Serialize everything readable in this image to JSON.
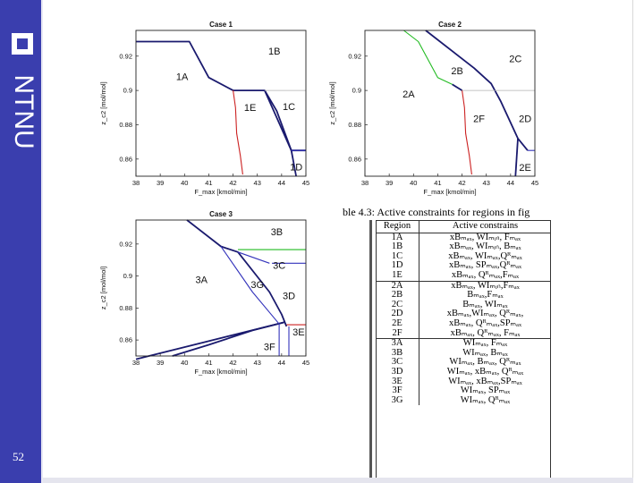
{
  "logo": {
    "text": "NTNU"
  },
  "page_number": "52",
  "colors": {
    "sidebar": "#3a3eae",
    "boundary": "#1a1a6e",
    "red": "#cc2222",
    "green": "#22bb22",
    "blue": "#3333bb",
    "gray": "#b0b0b0"
  },
  "chart_data": [
    {
      "type": "line",
      "title": "Case 1",
      "xlabel": "F_max [kmol/min]",
      "ylabel": "z_c2 [mol/mol]",
      "xlim": [
        38,
        45
      ],
      "ylim": [
        0.85,
        0.935
      ],
      "x_ticks": [
        "38",
        "39",
        "40",
        "41",
        "42",
        "43",
        "44",
        "45"
      ],
      "y_ticks": [
        "0.86",
        "0.88",
        "0.9",
        "0.92"
      ],
      "region_labels": [
        {
          "text": "1A",
          "x": 39.9,
          "y": 0.906
        },
        {
          "text": "1B",
          "x": 43.7,
          "y": 0.921
        },
        {
          "text": "1C",
          "x": 44.3,
          "y": 0.8885
        },
        {
          "text": "1E",
          "x": 42.7,
          "y": 0.888
        },
        {
          "text": "1D",
          "x": 44.6,
          "y": 0.8535
        }
      ],
      "series": [
        {
          "color": "boundary",
          "points": [
            [
              38.0,
              0.9285
            ],
            [
              40.2,
              0.9285
            ],
            [
              41.0,
              0.9075
            ],
            [
              42.0,
              0.9
            ],
            [
              43.3,
              0.9
            ],
            [
              43.8,
              0.888
            ],
            [
              44.4,
              0.865
            ],
            [
              45.0,
              0.865
            ]
          ]
        },
        {
          "color": "boundary",
          "points": [
            [
              43.3,
              0.9
            ],
            [
              44.4,
              0.865
            ]
          ]
        },
        {
          "color": "boundary",
          "points": [
            [
              44.4,
              0.865
            ],
            [
              44.6,
              0.85
            ]
          ]
        },
        {
          "color": "red",
          "points": [
            [
              42.0,
              0.9
            ],
            [
              42.1,
              0.89
            ],
            [
              42.15,
              0.875
            ],
            [
              42.3,
              0.862
            ],
            [
              42.4,
              0.851
            ]
          ]
        },
        {
          "color": "gray",
          "points": [
            [
              43.3,
              0.9
            ],
            [
              45.0,
              0.9
            ]
          ]
        },
        {
          "color": "blue",
          "points": [
            [
              44.4,
              0.865
            ],
            [
              45.0,
              0.865
            ]
          ]
        }
      ]
    },
    {
      "type": "line",
      "title": "Case 2",
      "xlabel": "F_max [kmol/min]",
      "ylabel": "z_c2 [mol/mol]",
      "xlim": [
        38,
        45
      ],
      "ylim": [
        0.85,
        0.935
      ],
      "x_ticks": [
        "38",
        "39",
        "40",
        "41",
        "42",
        "43",
        "44",
        "45"
      ],
      "y_ticks": [
        "0.86",
        "0.88",
        "0.9",
        "0.92"
      ],
      "region_labels": [
        {
          "text": "2C",
          "x": 44.2,
          "y": 0.9165
        },
        {
          "text": "2B",
          "x": 41.8,
          "y": 0.9095
        },
        {
          "text": "2A",
          "x": 39.8,
          "y": 0.896
        },
        {
          "text": "2F",
          "x": 42.7,
          "y": 0.8815
        },
        {
          "text": "2D",
          "x": 44.6,
          "y": 0.8815
        },
        {
          "text": "2E",
          "x": 44.6,
          "y": 0.853
        }
      ],
      "series": [
        {
          "color": "green",
          "points": [
            [
              39.6,
              0.935
            ],
            [
              40.2,
              0.9285
            ],
            [
              41.0,
              0.9075
            ],
            [
              41.6,
              0.9035
            ],
            [
              42.0,
              0.9
            ]
          ]
        },
        {
          "color": "boundary",
          "points": [
            [
              40.5,
              0.935
            ],
            [
              42.5,
              0.913
            ],
            [
              43.2,
              0.904
            ],
            [
              43.6,
              0.8935
            ],
            [
              44.3,
              0.872
            ],
            [
              44.7,
              0.865
            ]
          ]
        },
        {
          "color": "boundary",
          "points": [
            [
              41.6,
              0.9035
            ],
            [
              42.0,
              0.9
            ]
          ]
        },
        {
          "color": "boundary",
          "points": [
            [
              44.3,
              0.872
            ],
            [
              44.2,
              0.85
            ]
          ]
        },
        {
          "color": "red",
          "points": [
            [
              42.0,
              0.9
            ],
            [
              42.1,
              0.89
            ],
            [
              42.15,
              0.875
            ],
            [
              42.3,
              0.862
            ],
            [
              42.4,
              0.851
            ]
          ]
        },
        {
          "color": "gray",
          "points": [
            [
              42.0,
              0.9
            ],
            [
              45.0,
              0.9
            ]
          ]
        },
        {
          "color": "blue",
          "points": [
            [
              44.7,
              0.865
            ],
            [
              45.0,
              0.865
            ]
          ]
        }
      ]
    },
    {
      "type": "line",
      "title": "Case 3",
      "xlabel": "F_max [kmol/min]",
      "ylabel": "z_c2 [mol/mol]",
      "xlim": [
        38,
        45
      ],
      "ylim": [
        0.85,
        0.935
      ],
      "x_ticks": [
        "38",
        "39",
        "40",
        "41",
        "42",
        "43",
        "44",
        "45"
      ],
      "y_ticks": [
        "0.86",
        "0.88",
        "0.9",
        "0.92"
      ],
      "region_labels": [
        {
          "text": "3B",
          "x": 43.8,
          "y": 0.9255
        },
        {
          "text": "3C",
          "x": 43.9,
          "y": 0.9045
        },
        {
          "text": "3A",
          "x": 40.7,
          "y": 0.8955
        },
        {
          "text": "3G",
          "x": 43.0,
          "y": 0.8925
        },
        {
          "text": "3D",
          "x": 44.3,
          "y": 0.8855
        },
        {
          "text": "3E",
          "x": 44.7,
          "y": 0.863
        },
        {
          "text": "3F",
          "x": 43.5,
          "y": 0.8535
        }
      ],
      "series": [
        {
          "color": "boundary",
          "points": [
            [
              40.1,
              0.935
            ],
            [
              41.5,
              0.9185
            ],
            [
              42.2,
              0.915
            ],
            [
              43.5,
              0.89
            ],
            [
              44.0,
              0.876
            ],
            [
              44.2,
              0.8685
            ]
          ]
        },
        {
          "color": "boundary",
          "points": [
            [
              39.5,
              0.85
            ],
            [
              41.0,
              0.857
            ],
            [
              42.8,
              0.866
            ],
            [
              44.1,
              0.871
            ]
          ]
        },
        {
          "color": "boundary",
          "points": [
            [
              38.0,
              0.848
            ],
            [
              44.1,
              0.871
            ]
          ]
        },
        {
          "color": "blue",
          "points": [
            [
              41.5,
              0.9185
            ],
            [
              42.8,
              0.89
            ],
            [
              43.9,
              0.87
            ]
          ]
        },
        {
          "color": "blue",
          "points": [
            [
              42.2,
              0.915
            ],
            [
              43.5,
              0.908
            ]
          ]
        },
        {
          "color": "blue",
          "points": [
            [
              43.9,
              0.87
            ],
            [
              43.9,
              0.85
            ]
          ]
        },
        {
          "color": "green",
          "points": [
            [
              42.2,
              0.9165
            ],
            [
              45.0,
              0.9165
            ]
          ]
        },
        {
          "color": "blue",
          "points": [
            [
              43.6,
              0.908
            ],
            [
              45.0,
              0.908
            ]
          ]
        },
        {
          "color": "red",
          "points": [
            [
              44.2,
              0.8695
            ],
            [
              45.0,
              0.8695
            ]
          ]
        },
        {
          "color": "blue",
          "points": [
            [
              44.3,
              0.8685
            ],
            [
              44.3,
              0.85
            ]
          ]
        }
      ]
    }
  ],
  "table": {
    "caption": "ble 4.3: Active constraints for regions in fig",
    "headers": [
      "Region",
      "Active constrains"
    ],
    "rows": [
      {
        "region": "1A",
        "constraints": "xBₘₐₓ, WIₘᵢₙ, Fₘₐₓ",
        "group_start": false
      },
      {
        "region": "1B",
        "constraints": "xBₘₐₓ, WIₘᵢₙ, Bₘₐₓ",
        "group_start": false
      },
      {
        "region": "1C",
        "constraints": "xBₘₐₓ, WIₘₐₓ,Qᴿₘₐₓ",
        "group_start": false
      },
      {
        "region": "1D",
        "constraints": "xBₘₐₓ, SPₘₐₓ,Qᴿₘₐₓ",
        "group_start": false
      },
      {
        "region": "1E",
        "constraints": "xBₘₐₓ, Qᴿₘₐₓ,Fₘₐₓ",
        "group_start": false
      },
      {
        "region": "2A",
        "constraints": "xBₘₐₓ, WIₘᵢₙ,Fₘₐₓ",
        "group_start": true
      },
      {
        "region": "2B",
        "constraints": "Bₘₐₓ,Fₘₐₓ",
        "group_start": false
      },
      {
        "region": "2C",
        "constraints": "Bₘₐₓ, WIₘₐₓ",
        "group_start": false
      },
      {
        "region": "2D",
        "constraints": "xBₘₐₓ,WIₘₐₓ, Qᴿₘₐₓ,",
        "group_start": false
      },
      {
        "region": "2E",
        "constraints": "xBₘₐₓ, Qᴿₘₐₓ,SPₘₐₓ",
        "group_start": false
      },
      {
        "region": "2F",
        "constraints": "xBₘₐₓ, Qᴿₘₐₓ, Fₘₐₓ",
        "group_start": false
      },
      {
        "region": "3A",
        "constraints": "WIₘₐₓ, Fₘₐₓ",
        "group_start": true
      },
      {
        "region": "3B",
        "constraints": "WIₘₐₓ, Bₘₐₓ",
        "group_start": false
      },
      {
        "region": "3C",
        "constraints": "WIₘₐₓ, Bₘₐₓ, Qᴿₘₐₓ",
        "group_start": false
      },
      {
        "region": "3D",
        "constraints": "WIₘₐₓ, xBₘₐₓ, Qᴿₘₐₓ",
        "group_start": false
      },
      {
        "region": "3E",
        "constraints": "WIₘₐₓ, xBₘₐₓ,SPₘₐₓ",
        "group_start": false
      },
      {
        "region": "3F",
        "constraints": "WIₘₐₓ, SPₘₐₓ",
        "group_start": false
      },
      {
        "region": "3G",
        "constraints": "WIₘₐₓ, Qᴿₘₐₓ",
        "group_start": false
      }
    ]
  }
}
